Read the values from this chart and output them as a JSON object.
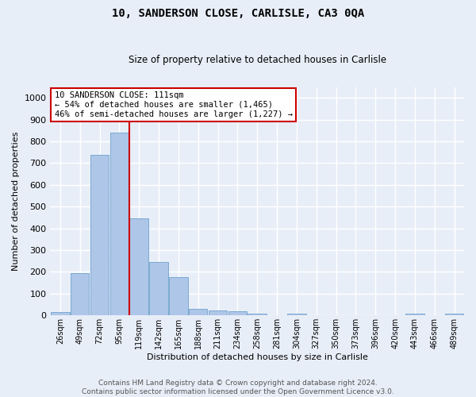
{
  "title": "10, SANDERSON CLOSE, CARLISLE, CA3 0QA",
  "subtitle": "Size of property relative to detached houses in Carlisle",
  "xlabel": "Distribution of detached houses by size in Carlisle",
  "ylabel": "Number of detached properties",
  "bar_labels": [
    "26sqm",
    "49sqm",
    "72sqm",
    "95sqm",
    "119sqm",
    "142sqm",
    "165sqm",
    "188sqm",
    "211sqm",
    "234sqm",
    "258sqm",
    "281sqm",
    "304sqm",
    "327sqm",
    "350sqm",
    "373sqm",
    "396sqm",
    "420sqm",
    "443sqm",
    "466sqm",
    "489sqm"
  ],
  "bar_values": [
    15,
    195,
    738,
    840,
    448,
    244,
    175,
    32,
    22,
    18,
    9,
    0,
    8,
    0,
    0,
    0,
    0,
    0,
    9,
    0,
    9
  ],
  "bar_color": "#aec6e8",
  "bar_edge_color": "#7aaad0",
  "bg_color": "#e8eef8",
  "fig_bg_color": "#e8eef8",
  "grid_color": "#ffffff",
  "vline_color": "#cc0000",
  "vline_x_index": 3.5,
  "annotation_text": "10 SANDERSON CLOSE: 111sqm\n← 54% of detached houses are smaller (1,465)\n46% of semi-detached houses are larger (1,227) →",
  "annotation_box_color": "#ffffff",
  "annotation_box_edge": "#cc0000",
  "footer_text": "Contains HM Land Registry data © Crown copyright and database right 2024.\nContains public sector information licensed under the Open Government Licence v3.0.",
  "ylim": [
    0,
    1050
  ],
  "yticks": [
    0,
    100,
    200,
    300,
    400,
    500,
    600,
    700,
    800,
    900,
    1000
  ],
  "title_fontsize": 10,
  "subtitle_fontsize": 8.5,
  "ylabel_fontsize": 8,
  "xlabel_fontsize": 8,
  "tick_fontsize": 7,
  "footer_fontsize": 6.5,
  "annotation_fontsize": 7.5
}
